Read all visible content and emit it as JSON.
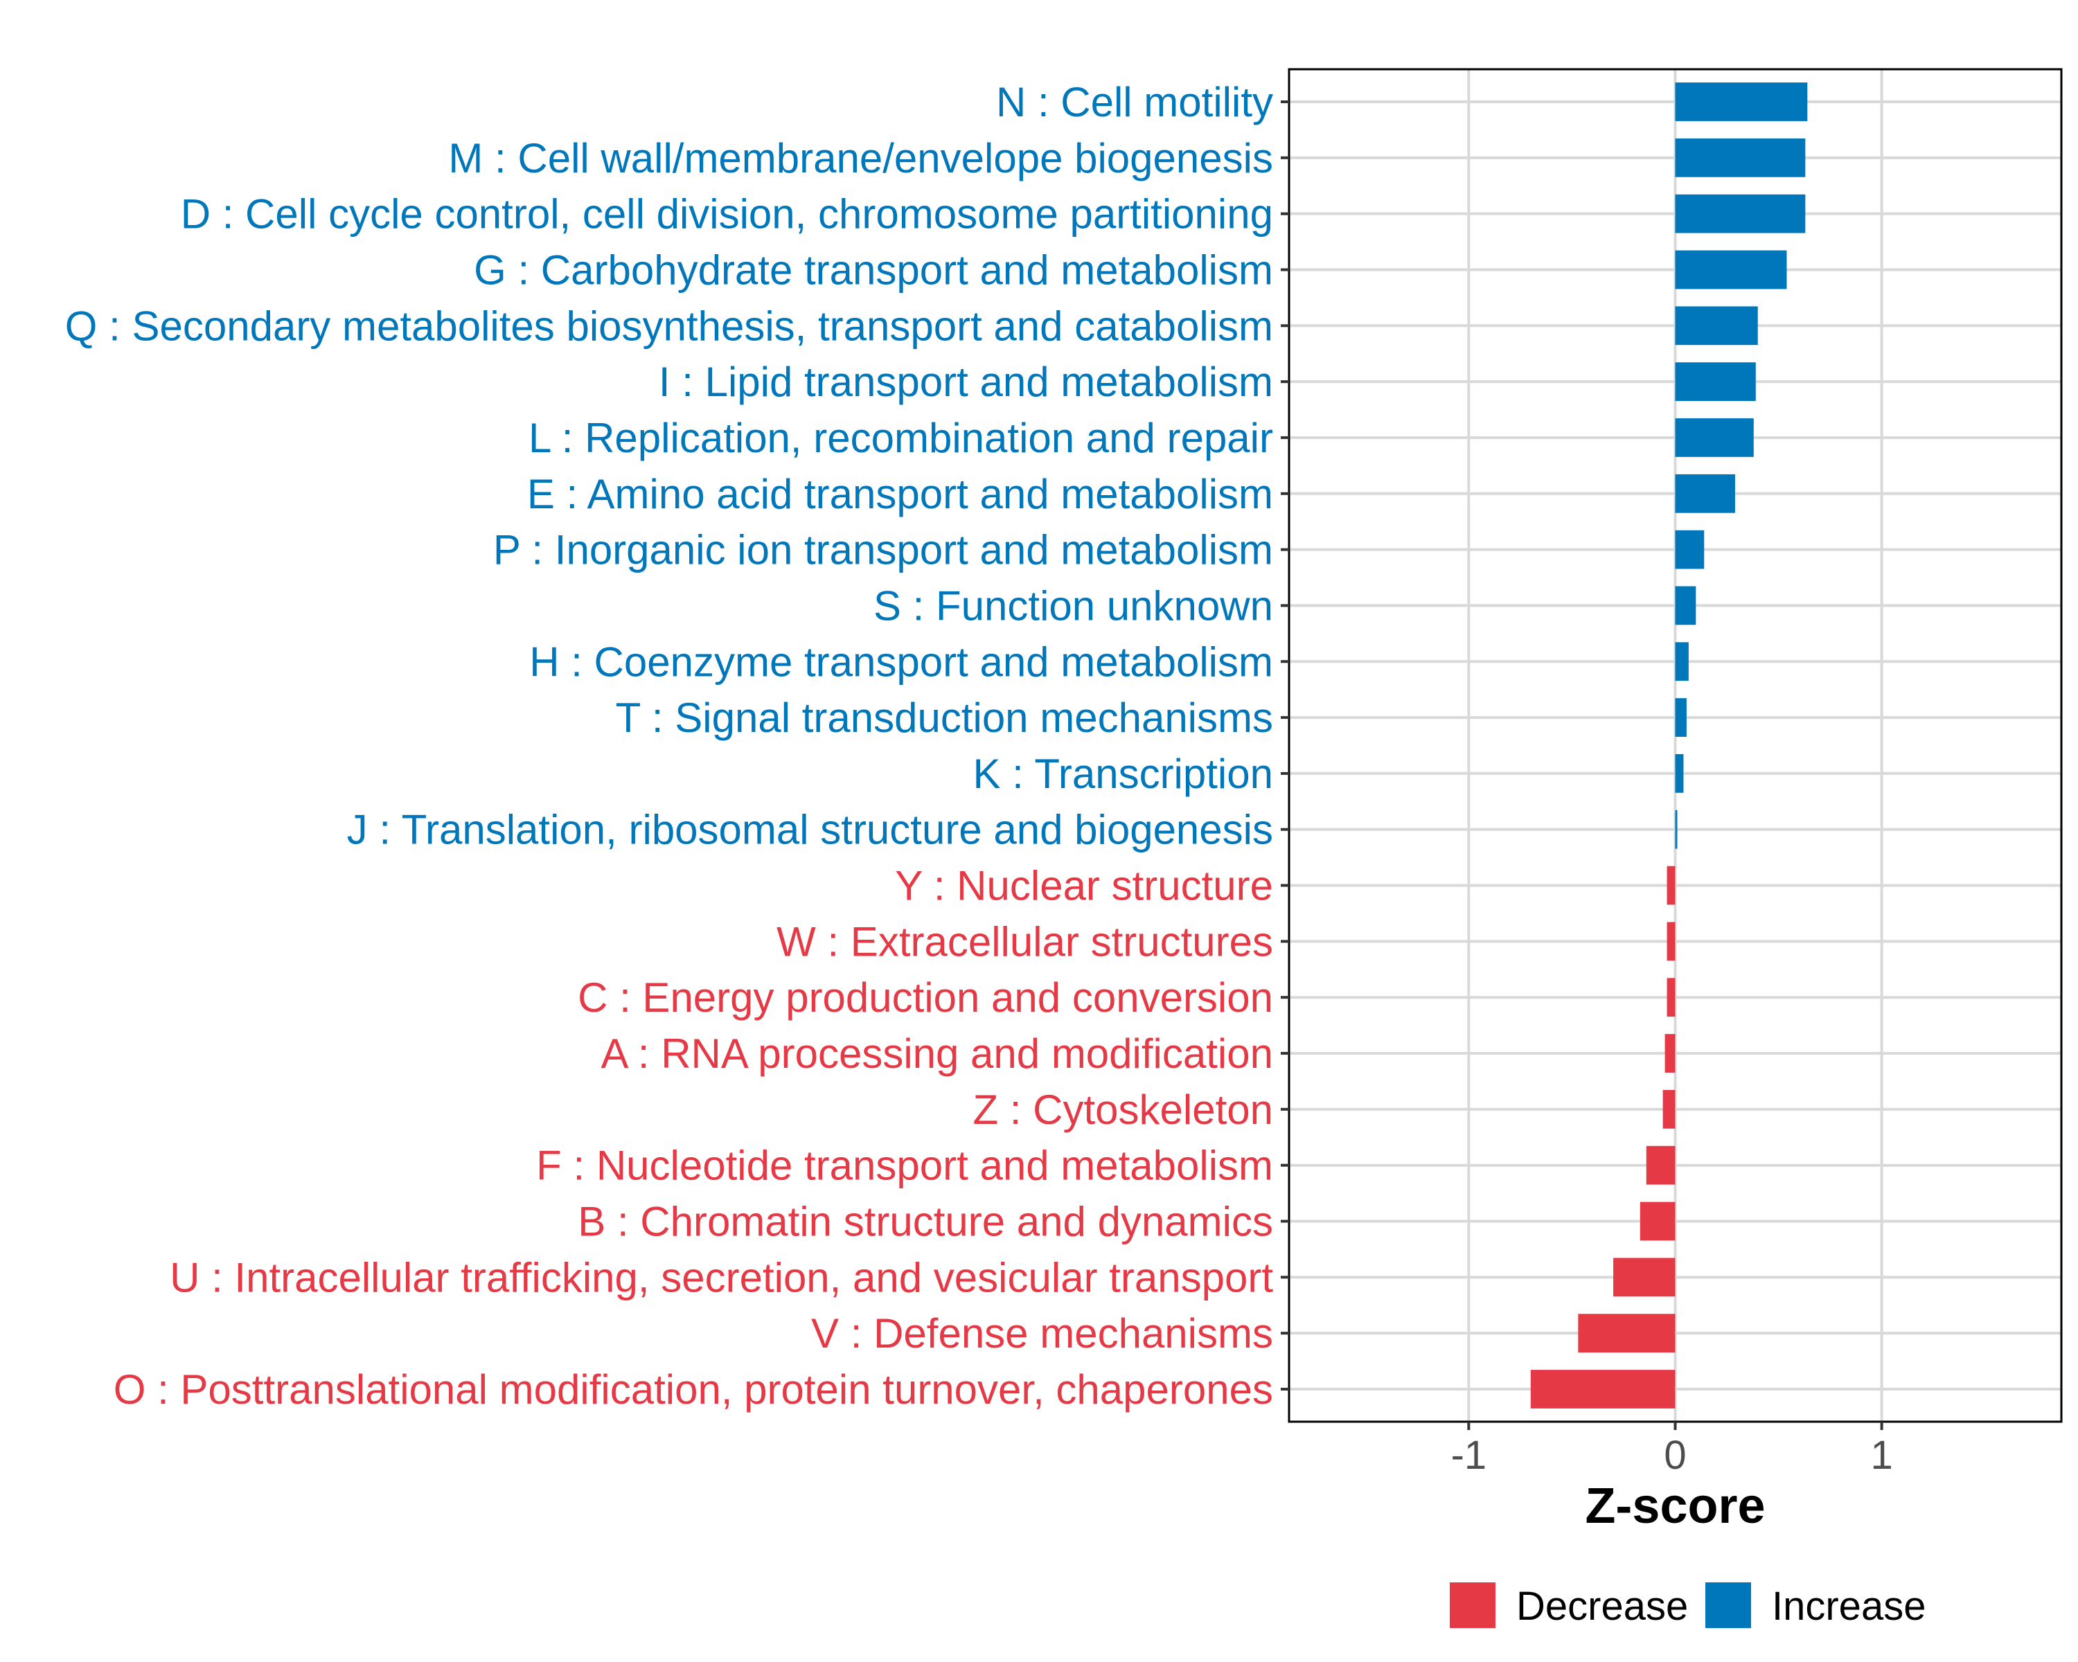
{
  "chart_data": {
    "type": "bar",
    "orientation": "horizontal",
    "title": "",
    "xlabel": "Z-score",
    "ylabel": "",
    "xlim": [
      -1.87,
      1.87
    ],
    "x_ticks": [
      -1,
      0,
      1
    ],
    "x_tick_labels": [
      "-1",
      "0",
      "1"
    ],
    "grid": true,
    "legend_position": "bottom",
    "legend": [
      {
        "label": "Decrease",
        "color": "#E63946"
      },
      {
        "label": "Increase",
        "color": "#0077BB"
      }
    ],
    "categories": [
      "N : Cell motility",
      "M : Cell wall/membrane/envelope biogenesis",
      "D : Cell cycle control, cell division, chromosome partitioning",
      "G : Carbohydrate transport and metabolism",
      "Q : Secondary metabolites biosynthesis, transport and catabolism",
      "I : Lipid transport and metabolism",
      "L : Replication, recombination and repair",
      "E : Amino acid transport and metabolism",
      "P : Inorganic ion transport and metabolism",
      "S : Function unknown",
      "H : Coenzyme transport and metabolism",
      "T : Signal transduction mechanisms",
      "K : Transcription",
      "J : Translation, ribosomal structure and biogenesis",
      "Y : Nuclear structure",
      "W : Extracellular structures",
      "C : Energy production and conversion",
      "A : RNA processing and modification",
      "Z : Cytoskeleton",
      "F : Nucleotide transport and metabolism",
      "B : Chromatin structure and dynamics",
      "U : Intracellular trafficking, secretion, and vesicular transport",
      "V : Defense mechanisms",
      "O : Posttranslational modification, protein turnover, chaperones"
    ],
    "values": [
      0.64,
      0.63,
      0.63,
      0.54,
      0.4,
      0.39,
      0.38,
      0.29,
      0.14,
      0.1,
      0.065,
      0.055,
      0.04,
      0.01,
      -0.04,
      -0.04,
      -0.04,
      -0.05,
      -0.06,
      -0.14,
      -0.17,
      -0.3,
      -0.47,
      -0.7
    ],
    "groups": [
      "Increase",
      "Increase",
      "Increase",
      "Increase",
      "Increase",
      "Increase",
      "Increase",
      "Increase",
      "Increase",
      "Increase",
      "Increase",
      "Increase",
      "Increase",
      "Increase",
      "Decrease",
      "Decrease",
      "Decrease",
      "Decrease",
      "Decrease",
      "Decrease",
      "Decrease",
      "Decrease",
      "Decrease",
      "Decrease"
    ],
    "colors": {
      "Increase": "#0077BB",
      "Decrease": "#E63946"
    }
  }
}
